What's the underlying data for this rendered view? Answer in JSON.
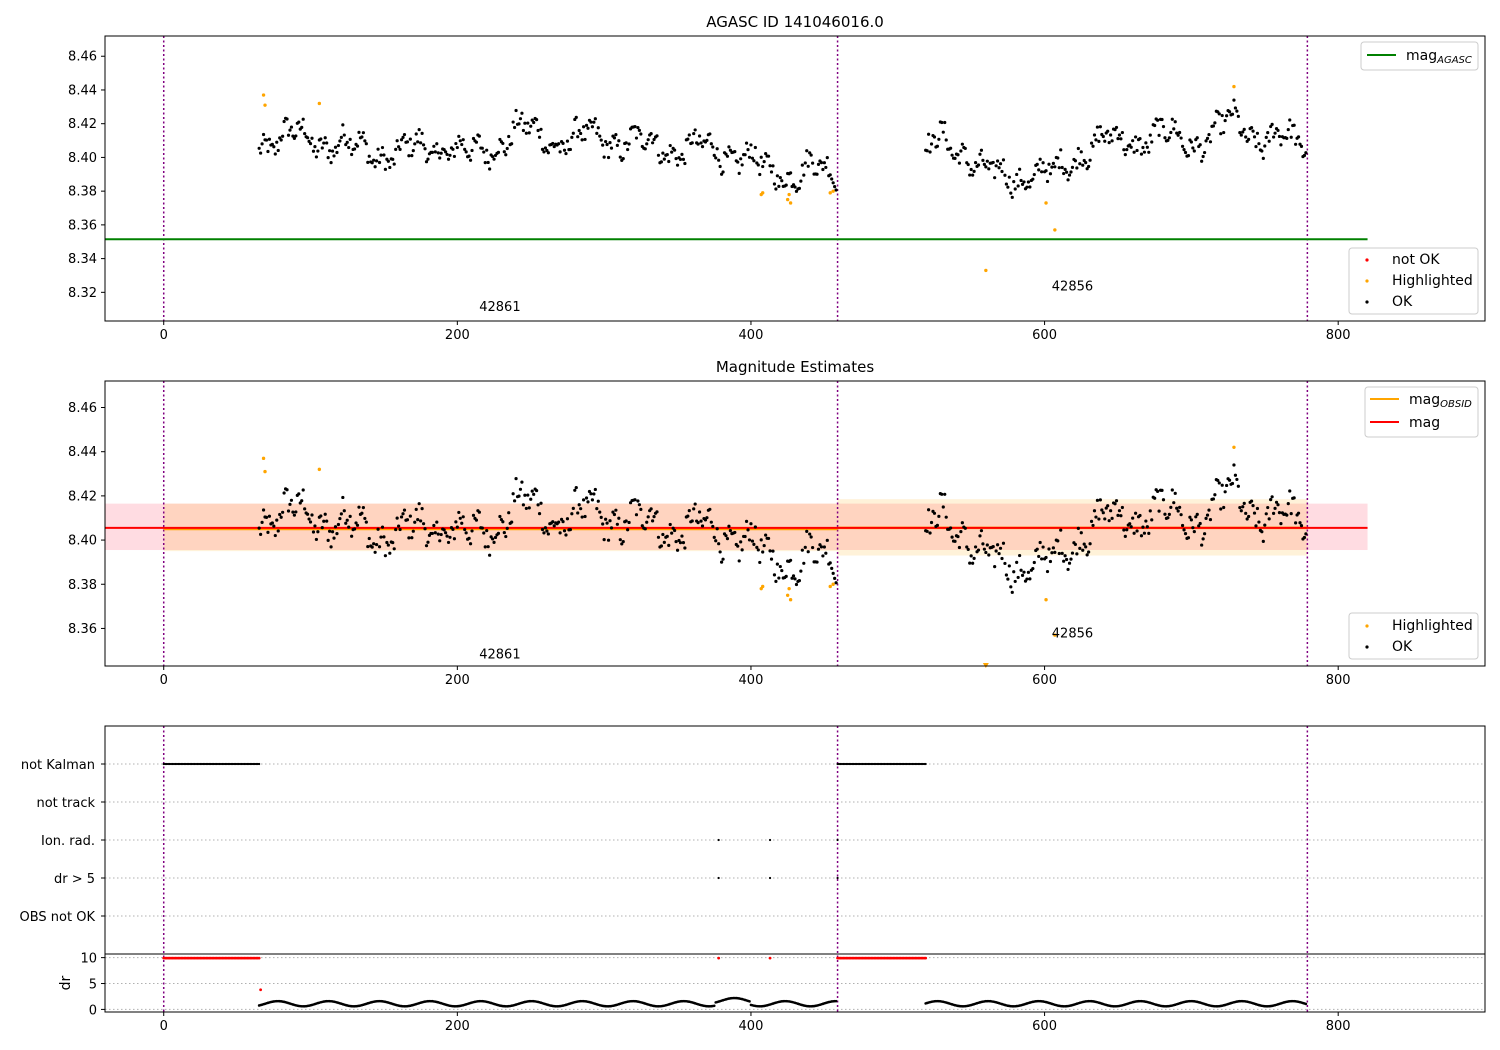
{
  "chart_data": [
    {
      "type": "scatter",
      "title": "AGASC ID 141046016.0",
      "xlabel": "",
      "ylabel": "",
      "xlim": [
        -40,
        900
      ],
      "ylim": [
        8.303,
        8.472
      ],
      "x_ticks": [
        0,
        200,
        400,
        600,
        800
      ],
      "y_ticks": [
        8.32,
        8.34,
        8.36,
        8.38,
        8.4,
        8.42,
        8.44,
        8.46
      ],
      "obsid_boundaries": [
        0,
        459,
        779
      ],
      "obsid_labels": [
        {
          "text": "42861",
          "x": 229,
          "y": 8.309
        },
        {
          "text": "42856",
          "x": 619,
          "y": 8.321
        }
      ],
      "reference_line": {
        "name": "mag_AGASC",
        "value": 8.3515,
        "x_range": [
          -40,
          820
        ],
        "color": "#008000"
      },
      "highlighted_points": [
        {
          "x": 68,
          "y": 8.437
        },
        {
          "x": 69,
          "y": 8.431
        },
        {
          "x": 106,
          "y": 8.432
        },
        {
          "x": 407,
          "y": 8.378
        },
        {
          "x": 408,
          "y": 8.379
        },
        {
          "x": 425,
          "y": 8.375
        },
        {
          "x": 427,
          "y": 8.373
        },
        {
          "x": 426,
          "y": 8.378
        },
        {
          "x": 454,
          "y": 8.379
        },
        {
          "x": 456,
          "y": 8.38
        },
        {
          "x": 560,
          "y": 8.333
        },
        {
          "x": 601,
          "y": 8.373
        },
        {
          "x": 607,
          "y": 8.357
        },
        {
          "x": 729,
          "y": 8.442
        }
      ],
      "ok_segments": [
        {
          "x_start": 65,
          "x_end": 458,
          "step": 1.0
        },
        {
          "x_start": 519,
          "x_end": 778,
          "step": 1.0
        }
      ],
      "legend_top": [
        "mag_AGASC"
      ],
      "legend_bottom": [
        "not OK",
        "Highlighted",
        "OK"
      ],
      "colors": {
        "ok": "#000000",
        "highlighted": "#ffa500",
        "not_ok": "#ff0000",
        "obsid_line": "#800080"
      }
    },
    {
      "type": "scatter",
      "title": "Magnitude Estimates",
      "xlim": [
        -40,
        900
      ],
      "ylim": [
        8.343,
        8.472
      ],
      "x_ticks": [
        0,
        200,
        400,
        600,
        800
      ],
      "y_ticks": [
        8.36,
        8.38,
        8.4,
        8.42,
        8.44,
        8.46
      ],
      "obsid_labels": [
        {
          "text": "42861",
          "x": 229,
          "y": 8.3465
        },
        {
          "text": "42856",
          "x": 619,
          "y": 8.356
        }
      ],
      "mag": {
        "value": 8.4055,
        "band": [
          8.3955,
          8.4165
        ],
        "x_range": [
          -40,
          820
        ],
        "color": "#ff0000"
      },
      "mag_obsid": [
        {
          "x_range": [
            0,
            459
          ],
          "value": 8.405,
          "band": [
            8.395,
            8.4165
          ]
        },
        {
          "x_range": [
            459,
            779
          ],
          "value": 8.4055,
          "band": [
            8.393,
            8.4185
          ]
        }
      ],
      "legend_top": [
        "mag_OBSID",
        "mag"
      ],
      "legend_bottom": [
        "Highlighted",
        "OK"
      ],
      "colors": {
        "mag_obsid": "#ffa500",
        "mag": "#ff0000",
        "band": "#ffc0cb"
      }
    },
    {
      "type": "scatter",
      "title": "",
      "xlim": [
        -40,
        900
      ],
      "x_ticks": [
        0,
        200,
        400,
        600,
        800
      ],
      "flag_rows": [
        "not Kalman",
        "not track",
        "Ion. rad.",
        "dr > 5",
        "OBS not OK"
      ],
      "flags": {
        "not Kalman": [
          [
            0,
            65
          ],
          [
            459,
            519
          ]
        ],
        "not track": [],
        "Ion. rad.": [
          378,
          413,
          459
        ],
        "dr > 5": [
          378,
          413,
          459
        ],
        "OBS not OK": []
      },
      "dr_ylabel": "dr",
      "dr_ticks": [
        0,
        5,
        10
      ],
      "dr_ylim": [
        -0.5,
        10.7
      ],
      "dr_saturated": [
        [
          0,
          65
        ],
        [
          378,
          378
        ],
        [
          413,
          413
        ],
        [
          459,
          519
        ]
      ],
      "dr_saturated_value": 9.9,
      "dr_point": {
        "x": 66,
        "y": 3.8
      }
    }
  ],
  "x_tick_labels": [
    "0",
    "200",
    "400",
    "600",
    "800"
  ],
  "legend": {
    "mag_agasc": {
      "base": "mag",
      "sub": "AGASC"
    },
    "not_ok": "not OK",
    "highlighted": "Highlighted",
    "ok": "OK",
    "mag_obsid": {
      "base": "mag",
      "sub": "OBSID"
    },
    "mag": "mag"
  }
}
